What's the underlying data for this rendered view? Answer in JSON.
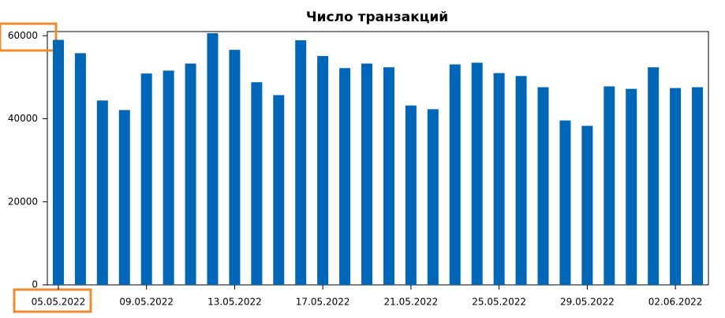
{
  "chart_data": {
    "type": "bar",
    "title": "Число транзакций",
    "categories": [
      "05.05.2022",
      null,
      null,
      null,
      "09.05.2022",
      null,
      null,
      null,
      "13.05.2022",
      null,
      null,
      null,
      "17.05.2022",
      null,
      null,
      null,
      "21.05.2022",
      null,
      null,
      null,
      "25.05.2022",
      null,
      null,
      null,
      "29.05.2022",
      null,
      null,
      null,
      "02.06.2022",
      null
    ],
    "values": [
      59000,
      55800,
      44400,
      42100,
      50900,
      51600,
      53300,
      60600,
      56600,
      48800,
      45700,
      58900,
      55100,
      52200,
      53300,
      52400,
      43200,
      42300,
      53100,
      53500,
      51000,
      50300,
      47600,
      39600,
      38300,
      47800,
      47200,
      52400,
      47400,
      47600
    ],
    "color": "#0066b8",
    "ylim": [
      0,
      61000
    ],
    "yticks": [
      0,
      20000,
      40000,
      60000
    ],
    "grid": false
  }
}
